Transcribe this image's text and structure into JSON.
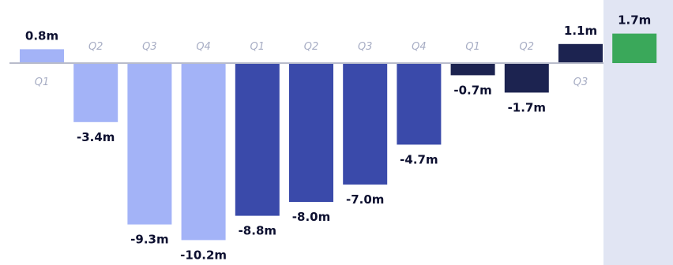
{
  "chart_data": {
    "type": "bar",
    "categories": [
      "Q1",
      "Q2",
      "Q3",
      "Q4",
      "Q1",
      "Q2",
      "Q3",
      "Q4",
      "Q1",
      "Q2",
      "Q3",
      ""
    ],
    "values": [
      0.8,
      -3.4,
      -9.3,
      -10.2,
      -8.8,
      -8.0,
      -7.0,
      -4.7,
      -0.7,
      -1.7,
      1.1,
      1.7
    ],
    "value_labels": [
      "0.8m",
      "-3.4m",
      "-9.3m",
      "-10.2m",
      "-8.8m",
      "-8.0m",
      "-7.0m",
      "-4.7m",
      "-0.7m",
      "-1.7m",
      "1.1m",
      "1.7m"
    ],
    "bar_colors": [
      "#a3b3f7",
      "#a3b3f7",
      "#a3b3f7",
      "#a3b3f7",
      "#3a4aaa",
      "#3a4aaa",
      "#3a4aaa",
      "#3a4aaa",
      "#1c2350",
      "#1c2350",
      "#1c2350",
      "#3aa85a"
    ],
    "highlight_background_color": "#e1e5f3",
    "baseline_color": "#b8bccb",
    "title": "",
    "xlabel": "",
    "ylabel": "",
    "ylim": [
      -11.05,
      1.85
    ],
    "grid": false,
    "legend": false
  }
}
